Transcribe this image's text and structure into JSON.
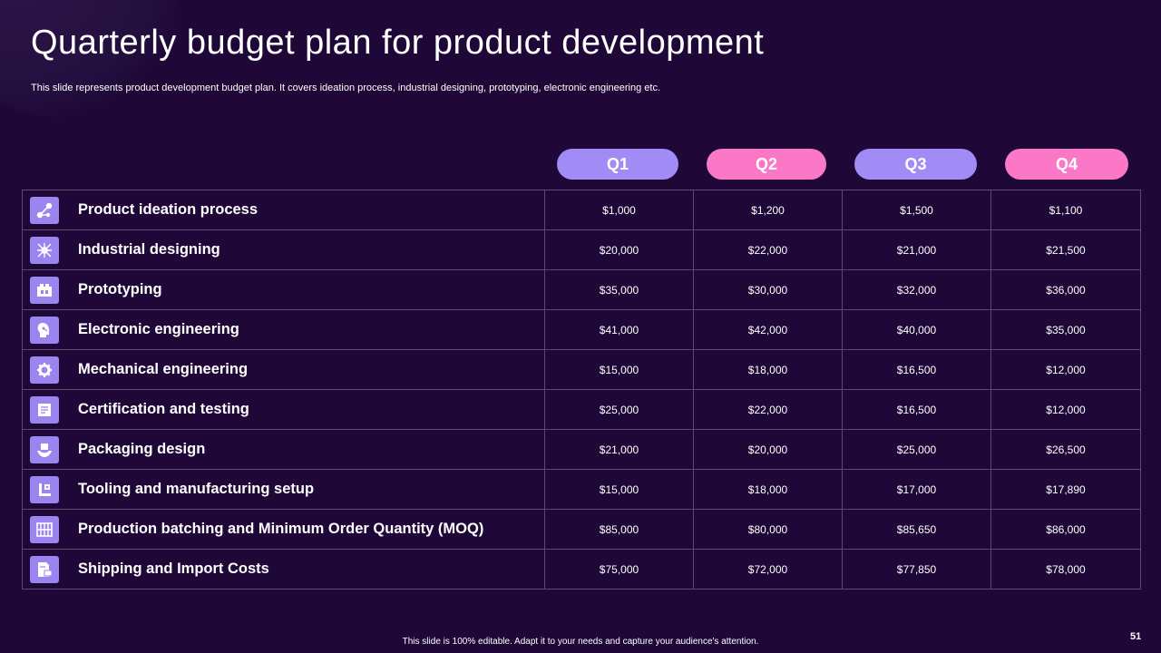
{
  "slide": {
    "title": "Quarterly budget plan for product development",
    "subtitle": "This slide represents product development budget plan. It covers ideation process, industrial designing, prototyping, electronic engineering etc.",
    "footer": "This slide is 100% editable.  Adapt it to your needs and capture your audience's attention.",
    "page_number": "51"
  },
  "colors": {
    "background": "#1f0838",
    "pill_purple": "#a08cf4",
    "pill_pink": "#fb78c6",
    "icon_bg": "#9a84f0",
    "grid_line": "#5a4a6e"
  },
  "quarters": [
    {
      "label": "Q1",
      "color": "#a08cf4"
    },
    {
      "label": "Q2",
      "color": "#fb78c6"
    },
    {
      "label": "Q3",
      "color": "#a08cf4"
    },
    {
      "label": "Q4",
      "color": "#fb78c6"
    }
  ],
  "rows": [
    {
      "label": "Product ideation process",
      "icon": "ideation-network-icon",
      "values": [
        "$1,000",
        "$1,200",
        "$1,500",
        "$1,100"
      ]
    },
    {
      "label": "Industrial designing",
      "icon": "design-grid-icon",
      "values": [
        "$20,000",
        "$22,000",
        "$21,000",
        "$21,500"
      ]
    },
    {
      "label": "Prototyping",
      "icon": "prototype-box-icon",
      "values": [
        "$35,000",
        "$30,000",
        "$32,000",
        "$36,000"
      ]
    },
    {
      "label": "Electronic  engineering",
      "icon": "circuit-head-icon",
      "values": [
        "$41,000",
        "$42,000",
        "$40,000",
        "$35,000"
      ]
    },
    {
      "label": "Mechanical engineering",
      "icon": "gear-icon",
      "values": [
        "$15,000",
        "$18,000",
        "$16,500",
        "$12,000"
      ]
    },
    {
      "label": "Certification  and testing",
      "icon": "certificate-icon",
      "values": [
        "$25,000",
        "$22,000",
        "$16,500",
        "$12,000"
      ]
    },
    {
      "label": "Packaging design",
      "icon": "package-hand-icon",
      "values": [
        "$21,000",
        "$20,000",
        "$25,000",
        "$26,500"
      ]
    },
    {
      "label": "Tooling and manufacturing setup",
      "icon": "tooling-icon",
      "values": [
        "$15,000",
        "$18,000",
        "$17,000",
        "$17,890"
      ]
    },
    {
      "label": "Production batching and Minimum Order Quantity (MOQ)",
      "icon": "production-batch-icon",
      "values": [
        "$85,000",
        "$80,000",
        "$85,650",
        "$86,000"
      ]
    },
    {
      "label": "Shipping and Import Costs",
      "icon": "shipping-document-icon",
      "values": [
        "$75,000",
        "$72,000",
        "$77,850",
        "$78,000"
      ]
    }
  ]
}
